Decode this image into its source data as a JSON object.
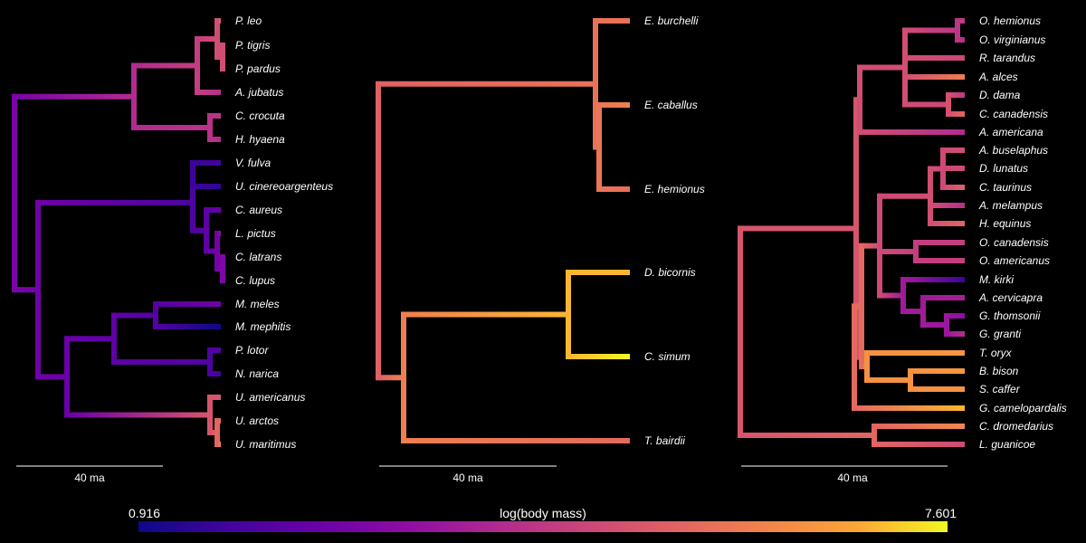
{
  "chart_data": [
    {
      "type": "phylogenetic-tree",
      "scale_bar": "40 ma",
      "nodes": {
        "root": {
          "v": 2.5,
          "children": [
            "cat",
            "dog"
          ]
        },
        "cat": {
          "v": 3.8,
          "children": [
            "fel",
            "hy"
          ]
        },
        "fel": {
          "v": 4.4,
          "children": [
            "pan",
            "A. jubatus"
          ]
        },
        "pan": {
          "v": 4.6,
          "children": [
            "P. leo",
            "pt"
          ]
        },
        "pt": {
          "v": 4.7,
          "children": [
            "P. tigris",
            "P. pardus"
          ]
        },
        "hy": {
          "v": 4.3,
          "children": [
            "C. crocuta",
            "H. hyaena"
          ]
        },
        "dog": {
          "v": 2.4,
          "children": [
            "can",
            "mus"
          ]
        },
        "can": {
          "v": 2.2,
          "children": [
            "vul",
            "cn"
          ]
        },
        "vul": {
          "v": 1.8,
          "children": [
            "V. fulva",
            "U. cinereoargenteus"
          ]
        },
        "cn": {
          "v": 2.3,
          "children": [
            "C. aureus",
            "lc"
          ]
        },
        "lc": {
          "v": 2.5,
          "children": [
            "L. pictus",
            "cc"
          ]
        },
        "cc": {
          "v": 2.7,
          "children": [
            "C. latrans",
            "C. lupus"
          ]
        },
        "mus": {
          "v": 2.5,
          "children": [
            "mm",
            "ursid"
          ]
        },
        "mm": {
          "v": 2.0,
          "children": [
            "mep",
            "ursid_unused"
          ]
        },
        "ursid": {
          "v": 5.0,
          "children": [
            "U. americanus",
            "ua"
          ]
        },
        "ua": {
          "v": 5.6,
          "children": [
            "U. arctos",
            "U. maritimus"
          ]
        }
      },
      "tips": [
        {
          "name": "P. leo",
          "value": 5.2
        },
        {
          "name": "P. tigris",
          "value": 5.1
        },
        {
          "name": "P. pardus",
          "value": 4.5
        },
        {
          "name": "A. jubatus",
          "value": 4.0
        },
        {
          "name": "C. crocuta",
          "value": 4.2
        },
        {
          "name": "H. hyaena",
          "value": 3.9
        },
        {
          "name": "V. fulva",
          "value": 1.7
        },
        {
          "name": "U. cinereoargenteus",
          "value": 1.4
        },
        {
          "name": "C. aureus",
          "value": 2.3
        },
        {
          "name": "L. pictus",
          "value": 3.0
        },
        {
          "name": "C. latrans",
          "value": 2.6
        },
        {
          "name": "C. lupus",
          "value": 3.5
        },
        {
          "name": "M. meles",
          "value": 2.5
        },
        {
          "name": "M. mephitis",
          "value": 0.916
        },
        {
          "name": "P. lotor",
          "value": 2.0
        },
        {
          "name": "N. narica",
          "value": 1.6
        },
        {
          "name": "U. americanus",
          "value": 5.0
        },
        {
          "name": "U. arctos",
          "value": 5.6
        },
        {
          "name": "U. maritimus",
          "value": 6.0
        }
      ]
    },
    {
      "type": "phylogenetic-tree",
      "scale_bar": "40 ma",
      "tips": [
        {
          "name": "E. burchelli",
          "value": 5.7
        },
        {
          "name": "E. caballus",
          "value": 6.0
        },
        {
          "name": "E. hemionus",
          "value": 5.6
        },
        {
          "name": "D. bicornis",
          "value": 7.0
        },
        {
          "name": "C. simum",
          "value": 7.601
        },
        {
          "name": "T. bairdii",
          "value": 5.5
        }
      ]
    },
    {
      "type": "phylogenetic-tree",
      "scale_bar": "40 ma",
      "tips": [
        {
          "name": "O. hemionus",
          "value": 4.3
        },
        {
          "name": "O. virginianus",
          "value": 4.0
        },
        {
          "name": "R. tarandus",
          "value": 4.6
        },
        {
          "name": "A. alces",
          "value": 6.0
        },
        {
          "name": "D. dama",
          "value": 4.2
        },
        {
          "name": "C. canadensis",
          "value": 5.4
        },
        {
          "name": "A. americana",
          "value": 3.9
        },
        {
          "name": "A. buselaphus",
          "value": 4.8
        },
        {
          "name": "D. lunatus",
          "value": 4.7
        },
        {
          "name": "C. taurinus",
          "value": 5.3
        },
        {
          "name": "A. melampus",
          "value": 4.0
        },
        {
          "name": "H. equinus",
          "value": 5.4
        },
        {
          "name": "O. canadensis",
          "value": 4.4
        },
        {
          "name": "O. americanus",
          "value": 4.4
        },
        {
          "name": "M. kirki",
          "value": 1.6
        },
        {
          "name": "A. cervicapra",
          "value": 3.6
        },
        {
          "name": "G. thomsonii",
          "value": 3.1
        },
        {
          "name": "G. granti",
          "value": 4.0
        },
        {
          "name": "T. oryx",
          "value": 6.5
        },
        {
          "name": "B. bison",
          "value": 6.5
        },
        {
          "name": "S. caffer",
          "value": 6.4
        },
        {
          "name": "G. camelopardalis",
          "value": 7.0
        },
        {
          "name": "C. dromedarius",
          "value": 6.2
        },
        {
          "name": "L. guanicoe",
          "value": 4.7
        }
      ]
    }
  ],
  "colorbar": {
    "label": "log(body mass)",
    "min": 0.916,
    "max": 7.601,
    "min_label": "0.916",
    "max_label": "7.601"
  }
}
